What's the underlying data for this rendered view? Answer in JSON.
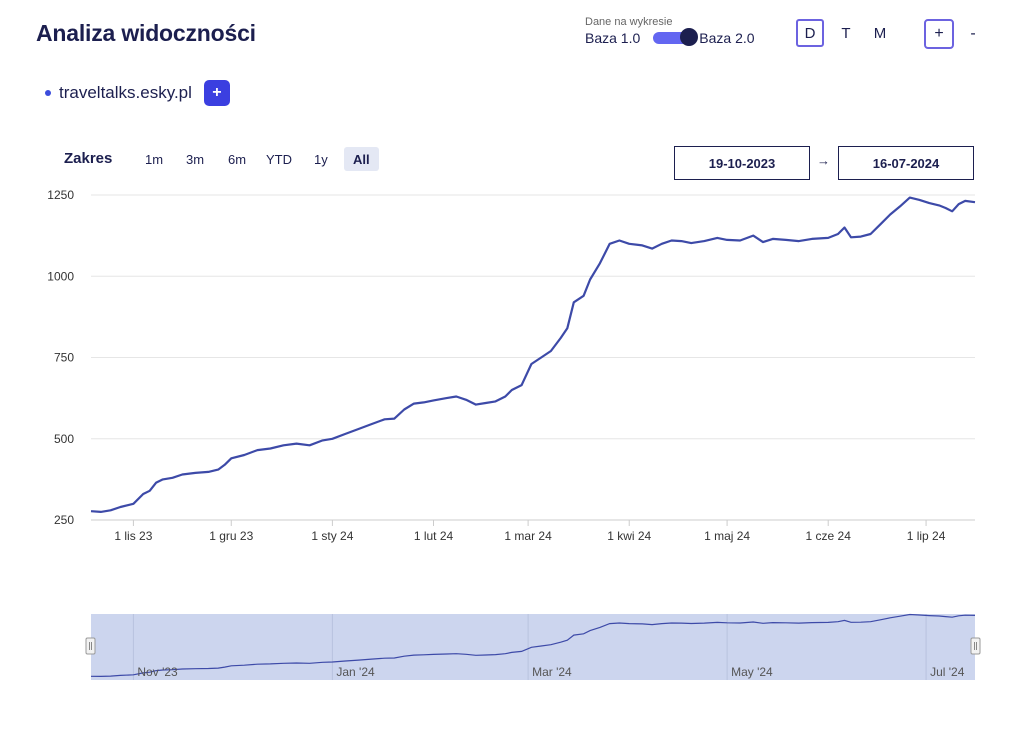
{
  "header": {
    "title": "Analiza widoczności",
    "base_caption": "Dane na wykresie",
    "base_left": "Baza 1.0",
    "base_right": "Baza 2.0",
    "periods": [
      "D",
      "T",
      "M"
    ],
    "zoom_in": "+",
    "zoom_out": "-"
  },
  "domain": {
    "name": "traveltalks.esky.pl",
    "add_label": "+"
  },
  "range": {
    "label": "Zakres",
    "buttons": [
      "1m",
      "3m",
      "6m",
      "YTD",
      "1y",
      "All"
    ],
    "active": "All",
    "from": "19-10-2023",
    "arrow": "→",
    "to": "16-07-2024"
  },
  "colors": {
    "line": "#3d4aa8",
    "navigator_fill": "#ccd5ee",
    "accent": "#6c63e0"
  },
  "chart_data": {
    "type": "line",
    "title": "",
    "xlabel": "",
    "ylabel": "",
    "ylim": [
      250,
      1250
    ],
    "yticks": [
      250,
      500,
      750,
      1000,
      1250
    ],
    "xlim": [
      "2023-10-19",
      "2024-07-16"
    ],
    "x_ticks": [
      {
        "date": "2023-11-01",
        "label": "1 lis 23"
      },
      {
        "date": "2023-12-01",
        "label": "1 gru 23"
      },
      {
        "date": "2024-01-01",
        "label": "1 sty 24"
      },
      {
        "date": "2024-02-01",
        "label": "1 lut 24"
      },
      {
        "date": "2024-03-01",
        "label": "1 mar 24"
      },
      {
        "date": "2024-04-01",
        "label": "1 kwi 24"
      },
      {
        "date": "2024-05-01",
        "label": "1 maj 24"
      },
      {
        "date": "2024-06-01",
        "label": "1 cze 24"
      },
      {
        "date": "2024-07-01",
        "label": "1 lip 24"
      }
    ],
    "navigator_ticks": [
      {
        "date": "2023-11-01",
        "label": "Nov '23"
      },
      {
        "date": "2024-01-01",
        "label": "Jan '24"
      },
      {
        "date": "2024-03-01",
        "label": "Mar '24"
      },
      {
        "date": "2024-05-01",
        "label": "May '24"
      },
      {
        "date": "2024-07-01",
        "label": "Jul '24"
      }
    ],
    "series": [
      {
        "values": [
          [
            "2023-10-19",
            277
          ],
          [
            "2023-10-22",
            275
          ],
          [
            "2023-10-25",
            280
          ],
          [
            "2023-10-28",
            290
          ],
          [
            "2023-11-01",
            300
          ],
          [
            "2023-11-04",
            330
          ],
          [
            "2023-11-06",
            340
          ],
          [
            "2023-11-08",
            365
          ],
          [
            "2023-11-10",
            375
          ],
          [
            "2023-11-13",
            380
          ],
          [
            "2023-11-16",
            390
          ],
          [
            "2023-11-20",
            395
          ],
          [
            "2023-11-24",
            398
          ],
          [
            "2023-11-27",
            405
          ],
          [
            "2023-11-29",
            420
          ],
          [
            "2023-12-01",
            440
          ],
          [
            "2023-12-05",
            450
          ],
          [
            "2023-12-09",
            465
          ],
          [
            "2023-12-13",
            470
          ],
          [
            "2023-12-17",
            480
          ],
          [
            "2023-12-21",
            485
          ],
          [
            "2023-12-25",
            480
          ],
          [
            "2023-12-29",
            495
          ],
          [
            "2024-01-01",
            500
          ],
          [
            "2024-01-05",
            515
          ],
          [
            "2024-01-09",
            530
          ],
          [
            "2024-01-13",
            545
          ],
          [
            "2024-01-17",
            560
          ],
          [
            "2024-01-20",
            562
          ],
          [
            "2024-01-23",
            590
          ],
          [
            "2024-01-26",
            608
          ],
          [
            "2024-01-29",
            612
          ],
          [
            "2024-02-01",
            618
          ],
          [
            "2024-02-05",
            625
          ],
          [
            "2024-02-08",
            630
          ],
          [
            "2024-02-11",
            620
          ],
          [
            "2024-02-14",
            605
          ],
          [
            "2024-02-17",
            610
          ],
          [
            "2024-02-20",
            615
          ],
          [
            "2024-02-23",
            630
          ],
          [
            "2024-02-25",
            650
          ],
          [
            "2024-02-28",
            665
          ],
          [
            "2024-03-02",
            730
          ],
          [
            "2024-03-05",
            750
          ],
          [
            "2024-03-08",
            770
          ],
          [
            "2024-03-11",
            810
          ],
          [
            "2024-03-13",
            840
          ],
          [
            "2024-03-15",
            920
          ],
          [
            "2024-03-18",
            940
          ],
          [
            "2024-03-20",
            990
          ],
          [
            "2024-03-23",
            1040
          ],
          [
            "2024-03-26",
            1100
          ],
          [
            "2024-03-29",
            1110
          ],
          [
            "2024-04-01",
            1100
          ],
          [
            "2024-04-05",
            1095
          ],
          [
            "2024-04-08",
            1085
          ],
          [
            "2024-04-11",
            1100
          ],
          [
            "2024-04-14",
            1110
          ],
          [
            "2024-04-17",
            1108
          ],
          [
            "2024-04-20",
            1102
          ],
          [
            "2024-04-24",
            1108
          ],
          [
            "2024-04-28",
            1118
          ],
          [
            "2024-05-01",
            1112
          ],
          [
            "2024-05-05",
            1110
          ],
          [
            "2024-05-09",
            1125
          ],
          [
            "2024-05-12",
            1105
          ],
          [
            "2024-05-15",
            1115
          ],
          [
            "2024-05-19",
            1112
          ],
          [
            "2024-05-23",
            1108
          ],
          [
            "2024-05-27",
            1115
          ],
          [
            "2024-06-01",
            1118
          ],
          [
            "2024-06-04",
            1130
          ],
          [
            "2024-06-06",
            1150
          ],
          [
            "2024-06-08",
            1120
          ],
          [
            "2024-06-11",
            1122
          ],
          [
            "2024-06-14",
            1130
          ],
          [
            "2024-06-17",
            1160
          ],
          [
            "2024-06-20",
            1190
          ],
          [
            "2024-06-23",
            1215
          ],
          [
            "2024-06-26",
            1242
          ],
          [
            "2024-06-29",
            1235
          ],
          [
            "2024-07-02",
            1225
          ],
          [
            "2024-07-05",
            1218
          ],
          [
            "2024-07-07",
            1210
          ],
          [
            "2024-07-09",
            1200
          ],
          [
            "2024-07-11",
            1222
          ],
          [
            "2024-07-13",
            1232
          ],
          [
            "2024-07-16",
            1228
          ]
        ]
      }
    ]
  }
}
